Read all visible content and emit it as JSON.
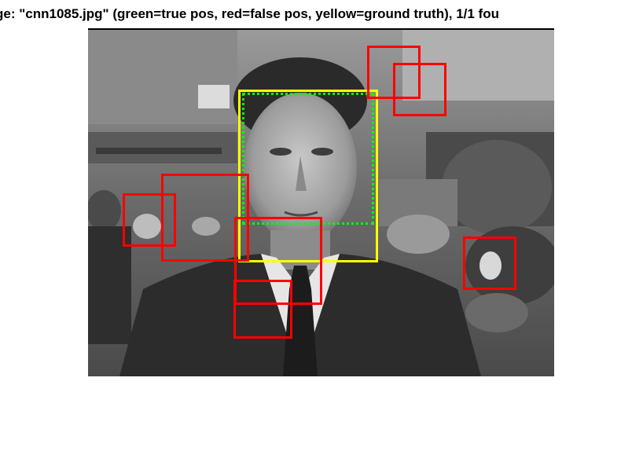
{
  "figure": {
    "title": "ge: \"cnn1085.jpg\" (green=true pos, red=false pos, yellow=ground truth), 1/1 fou"
  },
  "legend_colors": {
    "true_positive": "#00ff00",
    "false_positive": "#ff0000",
    "ground_truth": "#ffff00"
  },
  "image": {
    "description_icon": "grayscale-photo-man-in-suit"
  }
}
